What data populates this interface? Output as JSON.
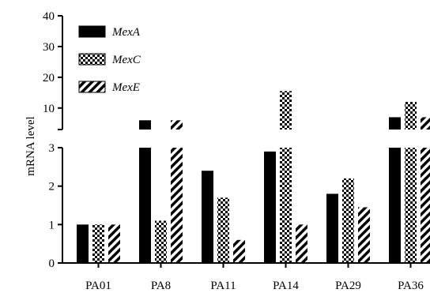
{
  "chart_data": {
    "type": "bar",
    "ylabel": "mRNA level",
    "xlabel": "",
    "categories": [
      "PA01",
      "PA8",
      "PA11",
      "PA14",
      "PA29",
      "PA36"
    ],
    "y_axis_broken": true,
    "ylim_lower": [
      0,
      3
    ],
    "ylim_upper": [
      3,
      40
    ],
    "yticks_lower": [
      "0",
      "1",
      "2",
      "3"
    ],
    "yticks_upper": [
      "10",
      "20",
      "30",
      "40"
    ],
    "legend_position": "top-left",
    "series": [
      {
        "name": "MexA",
        "pattern": "solid-black",
        "values": [
          1.0,
          6.0,
          2.4,
          2.9,
          1.8,
          7.0
        ]
      },
      {
        "name": "MexC",
        "pattern": "checkered",
        "values": [
          1.0,
          1.1,
          1.7,
          15.5,
          2.2,
          12.0
        ]
      },
      {
        "name": "MexE",
        "pattern": "diagonal-hatch",
        "values": [
          1.0,
          6.0,
          0.6,
          1.0,
          1.45,
          7.0
        ]
      }
    ]
  }
}
